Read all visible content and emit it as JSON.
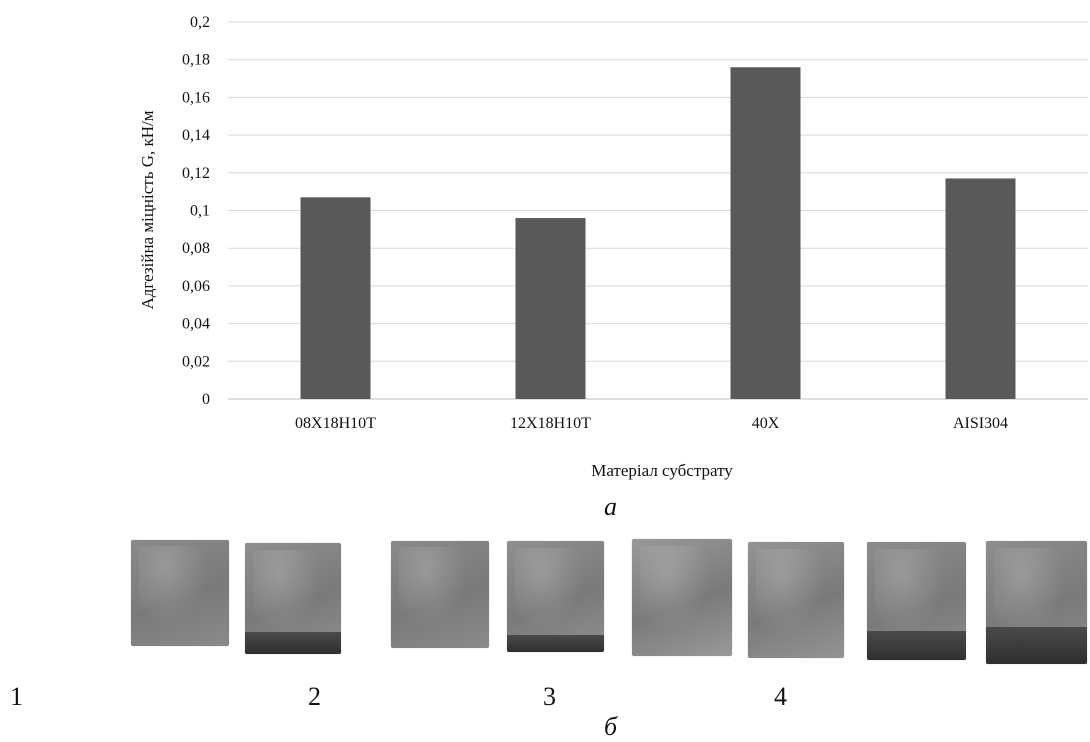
{
  "chart_data": {
    "type": "bar",
    "categories": [
      "08Х18Н10Т",
      "12Х18Н10Т",
      "40Х",
      "AISI304"
    ],
    "values": [
      0.107,
      0.096,
      0.176,
      0.117
    ],
    "ylabel": "Адгезійна міцність G, кН/м",
    "xlabel": "Матеріал субстрату",
    "ylim": [
      0,
      0.2
    ],
    "yticks": [
      "0",
      "0,02",
      "0,04",
      "0,06",
      "0,08",
      "0,1",
      "0,12",
      "0,14",
      "0,16",
      "0,18",
      "0,2"
    ],
    "grid": true,
    "bar_color": "#595959"
  },
  "labels": {
    "panel_a": "а",
    "panel_b": "б",
    "sample_numbers": [
      "1",
      "2",
      "3",
      "4"
    ]
  },
  "samples": [
    {
      "base": "#8a8a8a",
      "dark_fraction": 0
    },
    {
      "base": "#8e8e8e",
      "dark_fraction": 0.2
    },
    {
      "base": "#8a8a8a",
      "dark_fraction": 0
    },
    {
      "base": "#8f8f8f",
      "dark_fraction": 0.15
    },
    {
      "base": "#999999",
      "dark_fraction": 0
    },
    {
      "base": "#949494",
      "dark_fraction": 0
    },
    {
      "base": "#8c8c8c",
      "dark_fraction": 0.25
    },
    {
      "base": "#8d8d8d",
      "dark_fraction": 0.3
    }
  ]
}
